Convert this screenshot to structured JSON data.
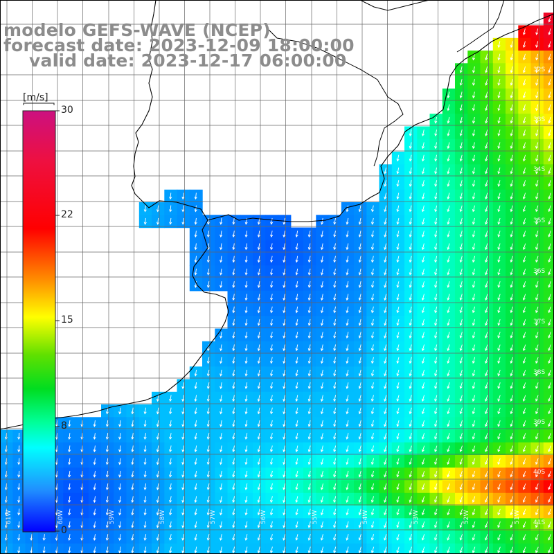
{
  "title": {
    "line1": "modelo GEFS-WAVE (NCEP)",
    "line2": "forecast date: 2023-12-09 18:00:00",
    "line3": "valid date: 2023-12-17 06:00:00"
  },
  "colorbar": {
    "unit": "[m/s]",
    "ticks": [
      "30",
      "22",
      "15",
      "8",
      "0"
    ],
    "colors": [
      "#cc1080",
      "#ff0000",
      "#ff8c00",
      "#ffff00",
      "#00dd00",
      "#00ffff",
      "#1060ff",
      "#0000ff"
    ]
  },
  "lat_labels": [
    "32S",
    "33S",
    "34S",
    "35S",
    "36S",
    "37S",
    "38S",
    "39S",
    "40S",
    "41S"
  ],
  "lon_labels": [
    "61W",
    "60W",
    "59W",
    "58W",
    "57W",
    "56W",
    "55W",
    "54W",
    "53W",
    "52W",
    "51W"
  ],
  "field_colors": {
    "land": "#ffffff",
    "coast": "#000000",
    "grid": "#666666",
    "arrow": "#ffffff"
  }
}
